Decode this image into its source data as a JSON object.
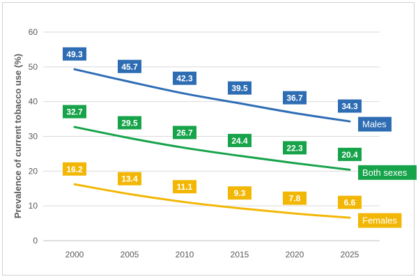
{
  "chart_data": {
    "type": "line",
    "title": "",
    "xlabel": "",
    "ylabel": "Prevalence of current tobacco use (%)",
    "x": [
      "2000",
      "2005",
      "2010",
      "2015",
      "2020",
      "2025"
    ],
    "ylim": [
      0,
      60
    ],
    "yticks": [
      "0",
      "10",
      "20",
      "30",
      "40",
      "50",
      "60"
    ],
    "grid": true,
    "series": [
      {
        "name": "Males",
        "color": "#2e6db4",
        "values": [
          49.3,
          45.7,
          42.3,
          39.5,
          36.7,
          34.3
        ],
        "labels": [
          "49.3",
          "45.7",
          "42.3",
          "39.5",
          "36.7",
          "34.3"
        ]
      },
      {
        "name": "Both sexes",
        "color": "#16a34a",
        "values": [
          32.7,
          29.5,
          26.7,
          24.4,
          22.3,
          20.4
        ],
        "labels": [
          "32.7",
          "29.5",
          "26.7",
          "24.4",
          "22.3",
          "20.4"
        ]
      },
      {
        "name": "Females",
        "color": "#f2b705",
        "values": [
          16.2,
          13.4,
          11.1,
          9.3,
          7.8,
          6.6
        ],
        "labels": [
          "16.2",
          "13.4",
          "11.1",
          "9.3",
          "7.8",
          "6.6"
        ]
      }
    ]
  }
}
